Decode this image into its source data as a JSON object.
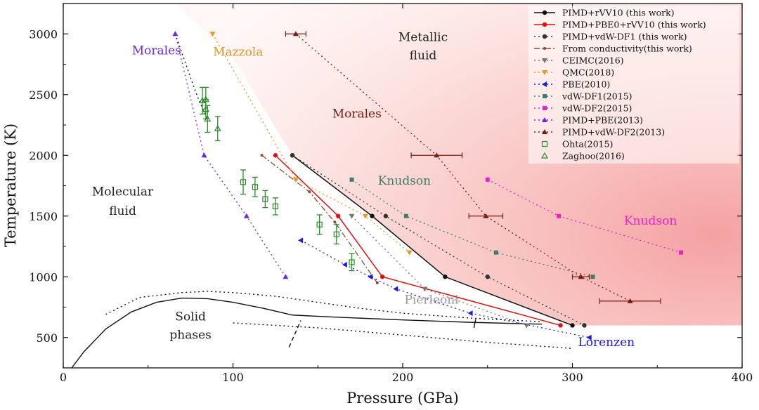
{
  "chart_data": {
    "type": "line",
    "xlabel": "Pressure (GPa)",
    "ylabel": "Temperature (K)",
    "xlim": [
      0,
      400
    ],
    "ylim": [
      250,
      3250
    ],
    "xticks": [
      0,
      100,
      200,
      300,
      400
    ],
    "yticks": [
      500,
      1000,
      1500,
      2000,
      2500,
      3000
    ],
    "legend_position": "top-right",
    "colors": {
      "shade": "#f6a0a0",
      "black": "#111111",
      "red": "#e01010",
      "dark": "#333333",
      "brown": "#8a4b2c",
      "grey": "#777777",
      "orange": "#e3982b",
      "blue": "#1a1ae0",
      "teal": "#3d7d6e",
      "magenta": "#f020c8",
      "purple": "#6a28e8",
      "maroon": "#7a1b10",
      "green": "#2a8a2a"
    },
    "series": [
      {
        "name": "PIMD+rVV10 (this work)",
        "color": "#111111",
        "style": "solid",
        "marker": "circle",
        "x": [
          135,
          182,
          225,
          300
        ],
        "y": [
          2000,
          1500,
          1000,
          600
        ]
      },
      {
        "name": "PIMD+PBE0+rVV10 (this work)",
        "color": "#e01010",
        "style": "solid",
        "marker": "circle",
        "x": [
          125,
          162,
          188,
          293
        ],
        "y": [
          2000,
          1500,
          1000,
          600
        ]
      },
      {
        "name": "PIMD+vdW-DF1 (this work)",
        "color": "#333333",
        "style": "dotted",
        "marker": "circle",
        "x": [
          135,
          190,
          250,
          307
        ],
        "y": [
          2000,
          1500,
          1000,
          600
        ]
      },
      {
        "name": "From conductivity(this work)",
        "color": "#8a4b2c",
        "style": "dashdot",
        "marker": "none",
        "x": [
          117,
          145,
          160,
          185
        ],
        "y": [
          2000,
          1700,
          1450,
          950
        ]
      },
      {
        "name": "CEIMC(2016)",
        "color": "#777777",
        "style": "dotted",
        "marker": "tri-down",
        "x": [
          170,
          213,
          273
        ],
        "y": [
          1500,
          900,
          600
        ]
      },
      {
        "name": "QMC(2018)",
        "color": "#e3982b",
        "style": "dotted",
        "marker": "tri-down",
        "x": [
          88,
          137,
          178,
          204
        ],
        "y": [
          3000,
          1800,
          1500,
          1200
        ]
      },
      {
        "name": "PBE(2010)",
        "color": "#1a1ae0",
        "style": "dotted",
        "marker": "tri-left",
        "x": [
          140,
          166,
          181,
          196,
          240,
          310
        ],
        "y": [
          1300,
          1100,
          1000,
          900,
          700,
          500
        ]
      },
      {
        "name": "vdW-DF1(2015)",
        "color": "#3d7d6e",
        "style": "dotted",
        "marker": "square",
        "x": [
          170,
          202,
          255,
          312
        ],
        "y": [
          1800,
          1500,
          1200,
          1000
        ]
      },
      {
        "name": "vdW-DF2(2015)",
        "color": "#f020c8",
        "style": "dotted",
        "marker": "square",
        "x": [
          250,
          292,
          364
        ],
        "y": [
          1800,
          1500,
          1200
        ]
      },
      {
        "name": "PIMD+PBE(2013)",
        "color": "#6a28e8",
        "style": "dotted",
        "marker": "tri-up",
        "x": [
          66,
          83,
          108,
          131
        ],
        "y": [
          3000,
          2000,
          1500,
          1000
        ]
      },
      {
        "name": "PIMD+vdW-DF2(2013)",
        "color": "#7a1b10",
        "style": "dotted",
        "marker": "tri-up",
        "x": [
          137,
          220,
          249,
          305,
          334
        ],
        "y": [
          3000,
          2000,
          1500,
          1000,
          800
        ],
        "xerr": [
          6,
          15,
          10,
          5,
          18
        ]
      },
      {
        "name": "Ohta(2015)",
        "color": "#2a8a2a",
        "style": "none",
        "marker": "open-square",
        "x": [
          106,
          113,
          119,
          125,
          151,
          161,
          170
        ],
        "y": [
          1780,
          1740,
          1640,
          1580,
          1430,
          1350,
          1120
        ],
        "yerr": [
          100,
          80,
          70,
          70,
          80,
          80,
          70
        ]
      },
      {
        "name": "Zaghoo(2016)",
        "color": "#2a8a2a",
        "style": "none",
        "marker": "open-tri",
        "x": [
          82,
          84,
          84,
          85,
          91
        ],
        "y": [
          2450,
          2460,
          2380,
          2300,
          2220
        ],
        "yerr": [
          110,
          100,
          80,
          110,
          100
        ]
      }
    ],
    "boundaries": [
      {
        "name": "solid-solid",
        "style": "solid",
        "x": [
          5,
          12,
          25,
          40,
          55,
          70,
          85,
          100,
          118,
          135,
          160,
          200,
          240,
          282
        ],
        "y": [
          250,
          380,
          570,
          710,
          790,
          825,
          820,
          790,
          740,
          685,
          668,
          645,
          625,
          610
        ]
      },
      {
        "name": "solid-dotted",
        "style": "dotted",
        "x": [
          25,
          45,
          70,
          85,
          100,
          125,
          150,
          175,
          200,
          240,
          282
        ],
        "y": [
          690,
          830,
          870,
          880,
          870,
          840,
          790,
          740,
          700,
          660,
          630
        ]
      },
      {
        "name": "lorenzen-lower",
        "style": "dotted",
        "x": [
          100,
          150,
          200,
          250,
          300
        ],
        "y": [
          620,
          580,
          520,
          460,
          410
        ]
      },
      {
        "name": "morales-curve",
        "style": "dotted",
        "x": [
          66,
          71,
          76,
          80,
          85
        ],
        "y": [
          3000,
          2800,
          2600,
          2450,
          2300
        ]
      },
      {
        "name": "vertical-dash",
        "style": "dashed",
        "x": [
          133,
          140
        ],
        "y": [
          420,
          640
        ]
      },
      {
        "name": "short-solid",
        "style": "solid",
        "x": [
          242,
          243
        ],
        "y": [
          580,
          650
        ]
      }
    ],
    "annotations": [
      {
        "text": "Morales",
        "x": 55,
        "y": 2830,
        "color": "#6a28e8"
      },
      {
        "text": "Mazzola",
        "x": 103,
        "y": 2820,
        "color": "#e3982b"
      },
      {
        "text": "Metallic",
        "x": 212,
        "y": 2940,
        "color": "#222222"
      },
      {
        "text": "fluid",
        "x": 212,
        "y": 2790,
        "color": "#222222"
      },
      {
        "text": "Morales",
        "x": 173,
        "y": 2310,
        "color": "#7a1b10"
      },
      {
        "text": "Knudson",
        "x": 201,
        "y": 1760,
        "color": "#3d7d6e"
      },
      {
        "text": "Knudson",
        "x": 346,
        "y": 1430,
        "color": "#f020c8"
      },
      {
        "text": "Molecular",
        "x": 35,
        "y": 1670,
        "color": "#222222"
      },
      {
        "text": "fluid",
        "x": 35,
        "y": 1510,
        "color": "#222222"
      },
      {
        "text": "Pierleoni",
        "x": 217,
        "y": 780,
        "color": "#999999"
      },
      {
        "text": "Solid",
        "x": 75,
        "y": 640,
        "color": "#222222"
      },
      {
        "text": "phases",
        "x": 75,
        "y": 490,
        "color": "#222222"
      },
      {
        "text": "Lorenzen",
        "x": 320,
        "y": 430,
        "color": "#1a1ae0"
      }
    ]
  }
}
